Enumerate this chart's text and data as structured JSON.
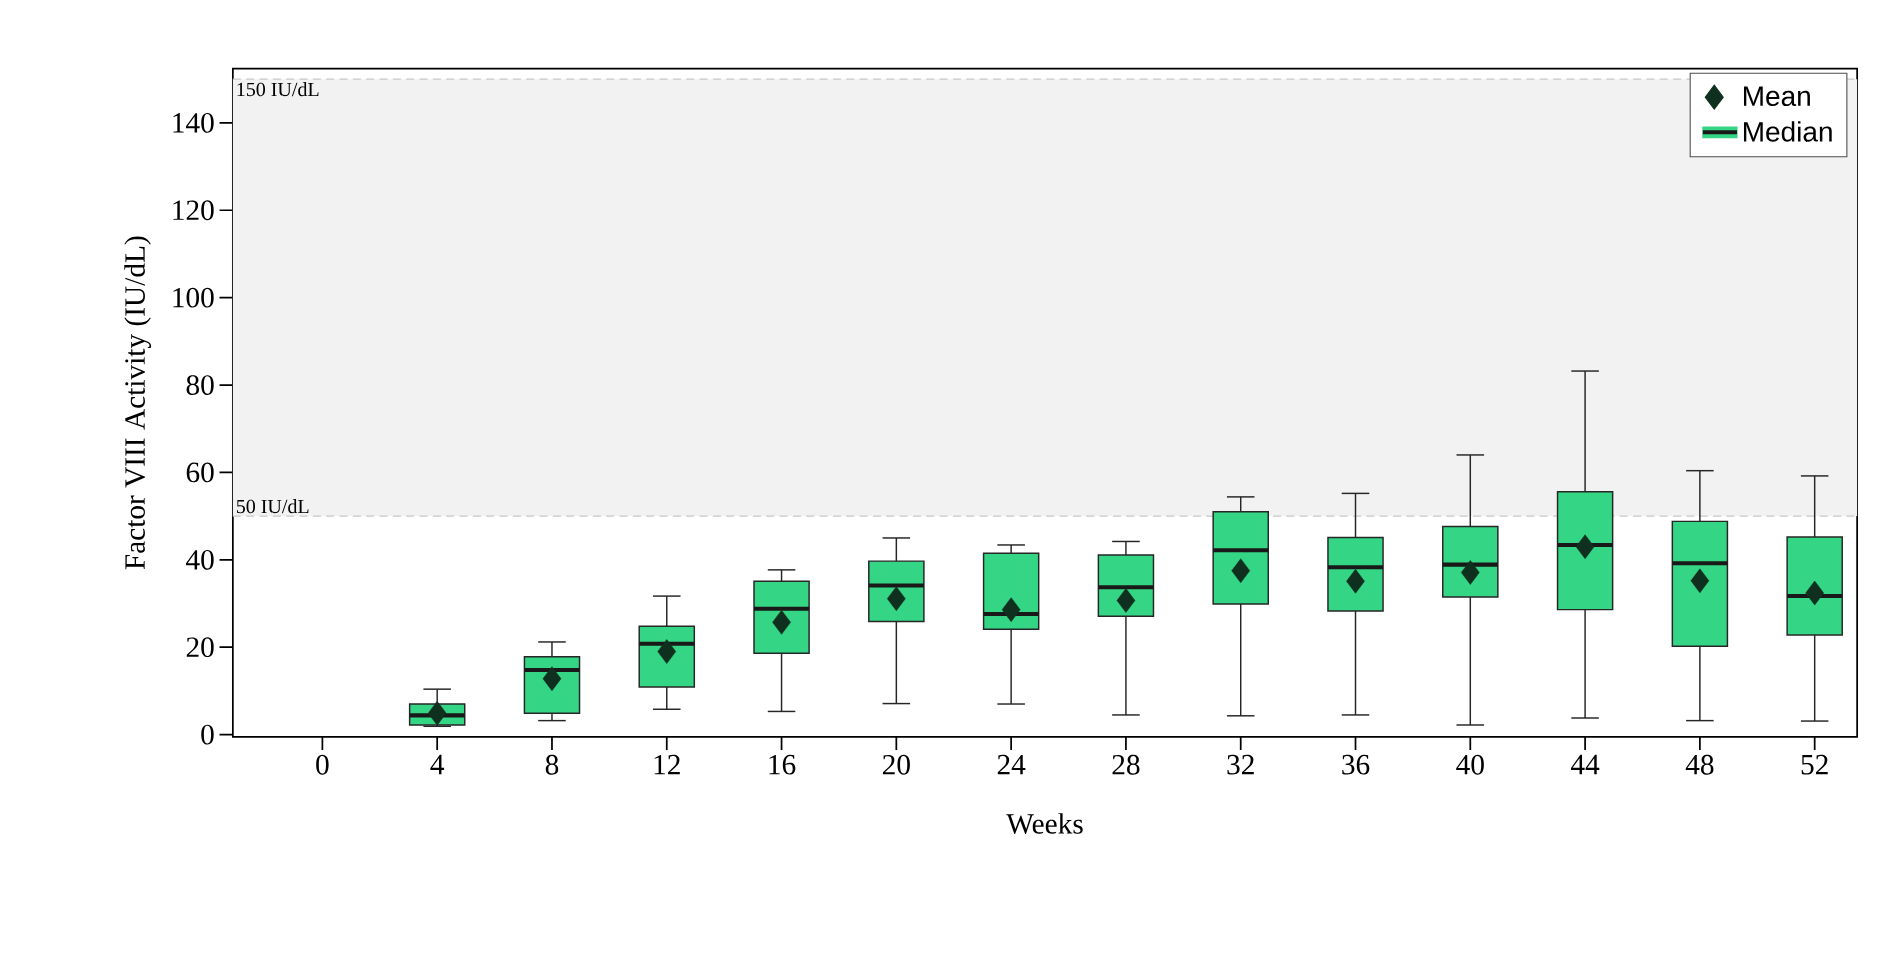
{
  "chart_data": {
    "type": "box",
    "xlabel": "Weeks",
    "ylabel": "Factor VIII Activity (IU/dL)",
    "categories": [
      "0",
      "4",
      "8",
      "12",
      "16",
      "20",
      "24",
      "28",
      "32",
      "36",
      "40",
      "44",
      "48",
      "52"
    ],
    "ylim": [
      -0.5,
      152.4
    ],
    "yticks": [
      0,
      20,
      40,
      60,
      80,
      100,
      120,
      140
    ],
    "series": [
      {
        "type": "scatter",
        "name": "Mean",
        "color": "#10301f",
        "marker": "diamond",
        "x": [
          "0",
          "4",
          "8",
          "12",
          "16",
          "20",
          "24",
          "28",
          "32",
          "36",
          "40",
          "44",
          "48",
          "52"
        ],
        "values": [
          null,
          4.9,
          12.8,
          19.0,
          25.7,
          31.1,
          28.6,
          30.7,
          37.5,
          35.1,
          37.1,
          43.0,
          35.2,
          32.4
        ]
      },
      {
        "type": "box",
        "name": "Median",
        "color": "#34d585",
        "boxes": [
          null,
          {
            "low": 1.9,
            "q1": 2.2,
            "median": 4.4,
            "q3": 7.0,
            "high": 10.4
          },
          {
            "low": 3.2,
            "q1": 4.9,
            "median": 14.8,
            "q3": 17.8,
            "high": 21.2
          },
          {
            "low": 5.8,
            "q1": 10.9,
            "median": 20.8,
            "q3": 24.8,
            "high": 31.7
          },
          {
            "low": 5.3,
            "q1": 18.6,
            "median": 28.8,
            "q3": 35.1,
            "high": 37.7
          },
          {
            "low": 7.1,
            "q1": 25.9,
            "median": 34.1,
            "q3": 39.7,
            "high": 45.0
          },
          {
            "low": 7.0,
            "q1": 24.1,
            "median": 27.6,
            "q3": 41.5,
            "high": 43.4
          },
          {
            "low": 4.5,
            "q1": 27.1,
            "median": 33.7,
            "q3": 41.1,
            "high": 44.2
          },
          {
            "low": 4.3,
            "q1": 29.9,
            "median": 42.2,
            "q3": 51.0,
            "high": 54.4
          },
          {
            "low": 4.5,
            "q1": 28.3,
            "median": 38.3,
            "q3": 45.1,
            "high": 55.2
          },
          {
            "low": 2.2,
            "q1": 31.5,
            "median": 38.9,
            "q3": 47.6,
            "high": 64.0
          },
          {
            "low": 3.8,
            "q1": 28.6,
            "median": 43.4,
            "q3": 55.6,
            "high": 83.2
          },
          {
            "low": 3.2,
            "q1": 20.2,
            "median": 39.2,
            "q3": 48.8,
            "high": 60.4
          },
          {
            "low": 3.1,
            "q1": 22.8,
            "median": 31.7,
            "q3": 45.2,
            "high": 59.2
          }
        ]
      }
    ],
    "bands": [
      {
        "axis": "y",
        "from": 50,
        "to": 150,
        "color": "#f2f2f2"
      }
    ],
    "ref_lines": [
      {
        "axis": "y",
        "value": 150,
        "label": "150 IU/dL",
        "color": "#c8c8c8",
        "line_style": "dashed"
      },
      {
        "axis": "y",
        "value": 50,
        "label": "50 IU/dL",
        "color": "#c8c8c8",
        "line_style": "dashed"
      }
    ],
    "legend": "top right",
    "grid": false
  }
}
